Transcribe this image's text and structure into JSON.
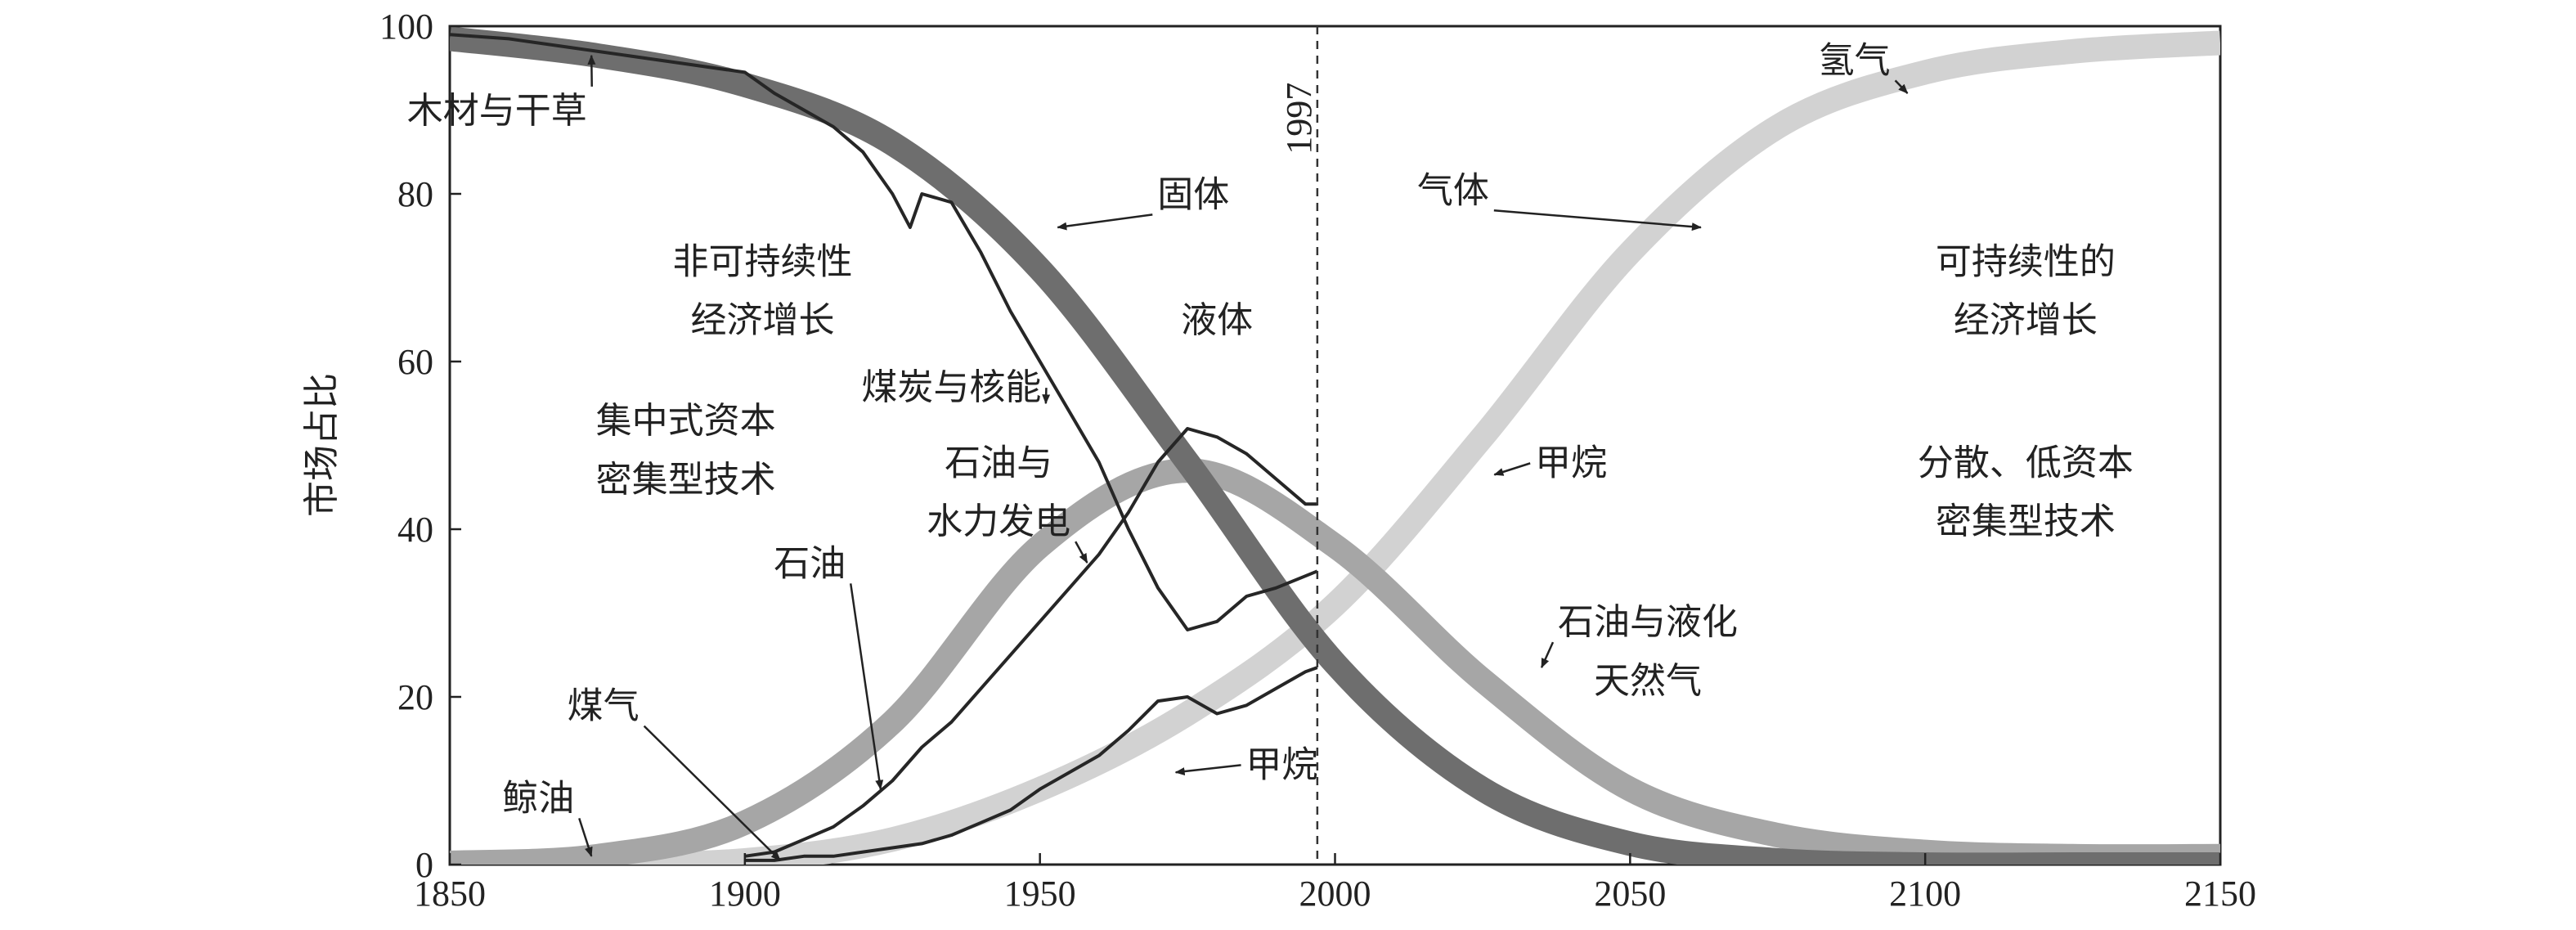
{
  "chart_data": {
    "type": "line",
    "title": "",
    "xlabel": "",
    "ylabel": "市场占比",
    "xlim": [
      1850,
      2150
    ],
    "ylim": [
      0,
      100
    ],
    "x_ticks": [
      1850,
      1900,
      1950,
      2000,
      2050,
      2100,
      2150
    ],
    "y_ticks": [
      0,
      20,
      40,
      60,
      80,
      100
    ],
    "grid": false,
    "legend": "none",
    "reference_line": {
      "x": 1997,
      "label": "1997"
    },
    "band_series": [
      {
        "name": "固体",
        "color": "#6e6e6e",
        "x": [
          1850,
          1875,
          1900,
          1925,
          1950,
          1975,
          2000,
          2025,
          2050,
          2075,
          2100,
          2125,
          2150
        ],
        "values": [
          98.5,
          96.5,
          93,
          86,
          71,
          48,
          24,
          9,
          2.5,
          0.5,
          0,
          0,
          0
        ]
      },
      {
        "name": "液体",
        "color": "#a6a6a6",
        "x": [
          1850,
          1875,
          1900,
          1925,
          1950,
          1975,
          2000,
          2025,
          2050,
          2075,
          2100,
          2125,
          2150
        ],
        "values": [
          0.2,
          1,
          5,
          17,
          38,
          47,
          38,
          22,
          9,
          3.5,
          1.5,
          1,
          1
        ]
      },
      {
        "name": "气体",
        "color": "#d2d2d2",
        "x": [
          1850,
          1875,
          1900,
          1925,
          1950,
          1975,
          2000,
          2025,
          2050,
          2075,
          2100,
          2125,
          2150
        ],
        "values": [
          0,
          0,
          0.5,
          3,
          9,
          18,
          31,
          51,
          73,
          88,
          94.5,
          97,
          98
        ]
      }
    ],
    "historical_series": [
      {
        "name": "木材与干草 / 煤炭与核能",
        "x": [
          1850,
          1860,
          1870,
          1880,
          1890,
          1900,
          1905,
          1910,
          1915,
          1920,
          1925,
          1928,
          1930,
          1935,
          1940,
          1945,
          1950,
          1955,
          1960,
          1965,
          1970,
          1975,
          1980,
          1985,
          1990,
          1997
        ],
        "values": [
          99,
          98.5,
          97.5,
          96.5,
          95.5,
          94.5,
          92,
          90,
          88,
          85,
          80,
          76,
          80,
          79,
          73,
          66,
          60,
          54,
          48,
          40,
          33,
          28,
          29,
          32,
          33,
          35
        ]
      },
      {
        "name": "石油与水力发电 / 液体",
        "x": [
          1900,
          1905,
          1910,
          1915,
          1920,
          1925,
          1930,
          1935,
          1940,
          1945,
          1950,
          1955,
          1960,
          1965,
          1970,
          1975,
          1980,
          1985,
          1990,
          1995,
          1997
        ],
        "values": [
          1,
          1.5,
          3,
          4.5,
          7,
          10,
          14,
          17,
          21,
          25,
          29,
          33,
          37,
          42,
          48,
          52,
          51,
          49,
          46,
          43,
          43
        ]
      },
      {
        "name": "煤气 / 甲烷",
        "x": [
          1900,
          1905,
          1910,
          1915,
          1920,
          1925,
          1930,
          1935,
          1940,
          1945,
          1950,
          1955,
          1960,
          1965,
          1970,
          1975,
          1980,
          1985,
          1990,
          1995,
          1997
        ],
        "values": [
          0.5,
          0.5,
          1,
          1,
          1.5,
          2,
          2.5,
          3.5,
          5,
          6.5,
          9,
          11,
          13,
          16,
          19.5,
          20,
          18,
          19,
          21,
          23,
          23.5
        ]
      }
    ],
    "annotations": [
      {
        "text": "木材与干草",
        "x": 1858,
        "y": 88.5,
        "arrow_to": [
          1874,
          96.5
        ]
      },
      {
        "text": "固体",
        "x": 1976,
        "y": 78.5,
        "arrow_to": [
          1953,
          76
        ]
      },
      {
        "text": "气体",
        "x": 2020,
        "y": 79,
        "arrow_to": [
          2062,
          76
        ]
      },
      {
        "text": "氢气",
        "x": 2088,
        "y": 94.5,
        "arrow_to": [
          2097,
          92
        ]
      },
      {
        "text": "非可持续性",
        "x": 1903,
        "y": 70.5
      },
      {
        "text": "经济增长",
        "x": 1903,
        "y": 63.5
      },
      {
        "text": "可持续性的",
        "x": 2117,
        "y": 70.5
      },
      {
        "text": "经济增长",
        "x": 2117,
        "y": 63.5
      },
      {
        "text": "集中式资本",
        "x": 1890,
        "y": 51.5
      },
      {
        "text": "密集型技术",
        "x": 1890,
        "y": 44.5
      },
      {
        "text": "煤炭与核能",
        "x": 1935,
        "y": 55.5,
        "arrow_to": [
          1951,
          55
        ]
      },
      {
        "text": "液体",
        "x": 1980,
        "y": 63.5
      },
      {
        "text": "石油与",
        "x": 1943,
        "y": 46.5
      },
      {
        "text": "水力发电",
        "x": 1943,
        "y": 39.5,
        "arrow_to": [
          1958,
          36
        ]
      },
      {
        "text": "甲烷",
        "x": 2040,
        "y": 46.5,
        "arrow_to": [
          2027,
          46.5
        ]
      },
      {
        "text": "分散、低资本",
        "x": 2117,
        "y": 46.5
      },
      {
        "text": "密集型技术",
        "x": 2117,
        "y": 39.5
      },
      {
        "text": "石油",
        "x": 1911,
        "y": 34.5,
        "arrow_to": [
          1923,
          9
        ]
      },
      {
        "text": "石油与液化",
        "x": 2053,
        "y": 27.5,
        "arrow_to": [
          2035,
          23.5
        ]
      },
      {
        "text": "天然气",
        "x": 2053,
        "y": 20.5
      },
      {
        "text": "煤气",
        "x": 1876,
        "y": 17.5,
        "arrow_to": [
          1906,
          0.5
        ]
      },
      {
        "text": "甲烷",
        "x": 1991,
        "y": 10.5,
        "arrow_to": [
          1973,
          11
        ]
      },
      {
        "text": "鲸油",
        "x": 1865,
        "y": 6.5,
        "arrow_to": [
          1874,
          1
        ]
      }
    ]
  }
}
